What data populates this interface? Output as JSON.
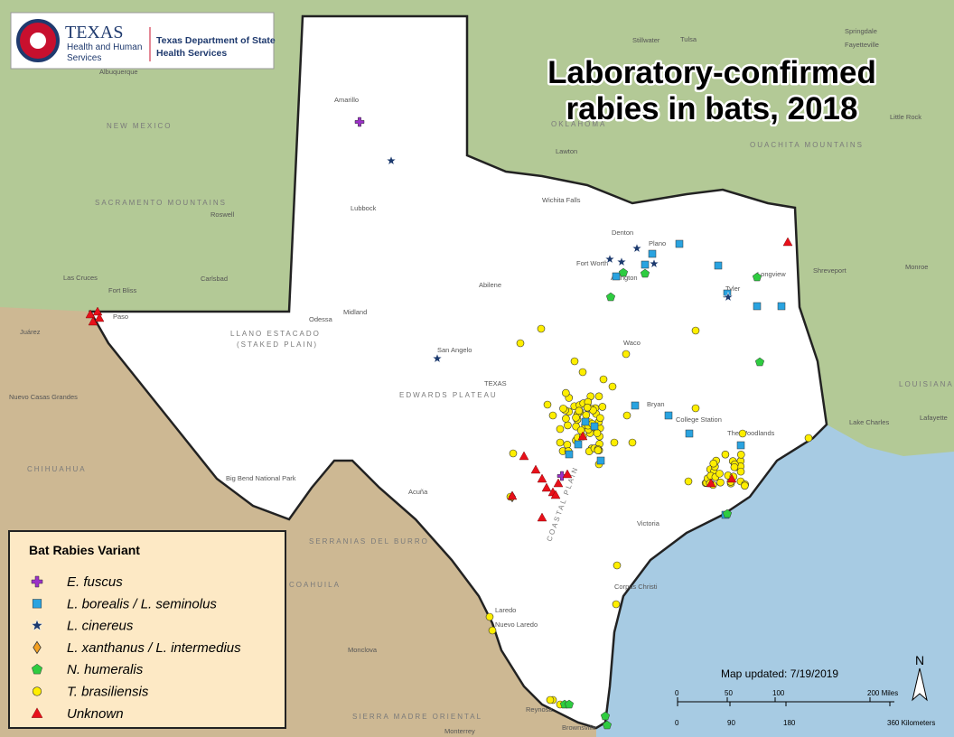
{
  "logo": {
    "agency": "TEXAS",
    "line1": "Health and Human",
    "line2": "Services",
    "department1": "Texas Department of State",
    "department2": "Health Services"
  },
  "title": [
    "Laboratory-confirmed",
    "rabies in bats, 2018"
  ],
  "legend": {
    "title": "Bat Rabies Variant",
    "items": [
      {
        "label": "E. fuscus",
        "shape": "cross",
        "color": "#9b30c8"
      },
      {
        "label": "L. borealis / L. seminolus",
        "shape": "square",
        "color": "#29a3e0"
      },
      {
        "label": "L. cinereus",
        "shape": "star",
        "color": "#1c3a6e"
      },
      {
        "label": "L. xanthanus / L. intermedius",
        "shape": "diamond",
        "color": "#f4a020"
      },
      {
        "label": "N. humeralis",
        "shape": "pentagon",
        "color": "#2ecc40"
      },
      {
        "label": "T. brasiliensis",
        "shape": "circle",
        "color": "#ffee00"
      },
      {
        "label": "Unknown",
        "shape": "triangle",
        "color": "#e8101a"
      }
    ]
  },
  "updated": "Map updated: 7/19/2019",
  "scale": {
    "miles": [
      "0",
      "50",
      "100",
      "200 Miles"
    ],
    "kilometers": [
      "0",
      "90",
      "180",
      "360 Kilometers"
    ]
  },
  "north": "N",
  "places": [
    "Amarillo",
    "Lubbock",
    "Midland",
    "Odessa",
    "Paso",
    "Juárez",
    "San Angelo",
    "Abilene",
    "Wichita Falls",
    "Denton",
    "Fort Worth",
    "Plano",
    "Arlington",
    "Tyler",
    "Longview",
    "Waco",
    "Bryan",
    "College Station",
    "The Woodlands",
    "Victoria",
    "Corpus Christi",
    "Laredo",
    "Nuevo Laredo",
    "Reynosa",
    "Brownsville",
    "Monterrey",
    "Acuña",
    "Shreveport",
    "Monroe",
    "Lake Charles",
    "Lafayette",
    "Albuquerque",
    "Roswell",
    "Carlsbad",
    "Las Cruces",
    "Fort Bliss",
    "Lawton",
    "Tulsa",
    "Stillwater",
    "Little Rock",
    "Fayetteville",
    "Springdale",
    "Monclova",
    "Nuevo Casas Grandes",
    "Big Bend National Park",
    "TEXAS"
  ],
  "regions": [
    "NEW MEXICO",
    "OKLAHOMA",
    "LOUISIANA",
    "CHIHUAHUA",
    "COAHUILA",
    "SERRANIAS DEL BURRO",
    "SIERRA MADRE ORIENTAL",
    "EDWARDS PLATEAU",
    "LLANO ESTACADO",
    "(STAKED PLAIN)",
    "OUACHITA MOUNTAINS",
    "SACRAMENTO MOUNTAINS",
    "COASTAL PLAIN"
  ]
}
